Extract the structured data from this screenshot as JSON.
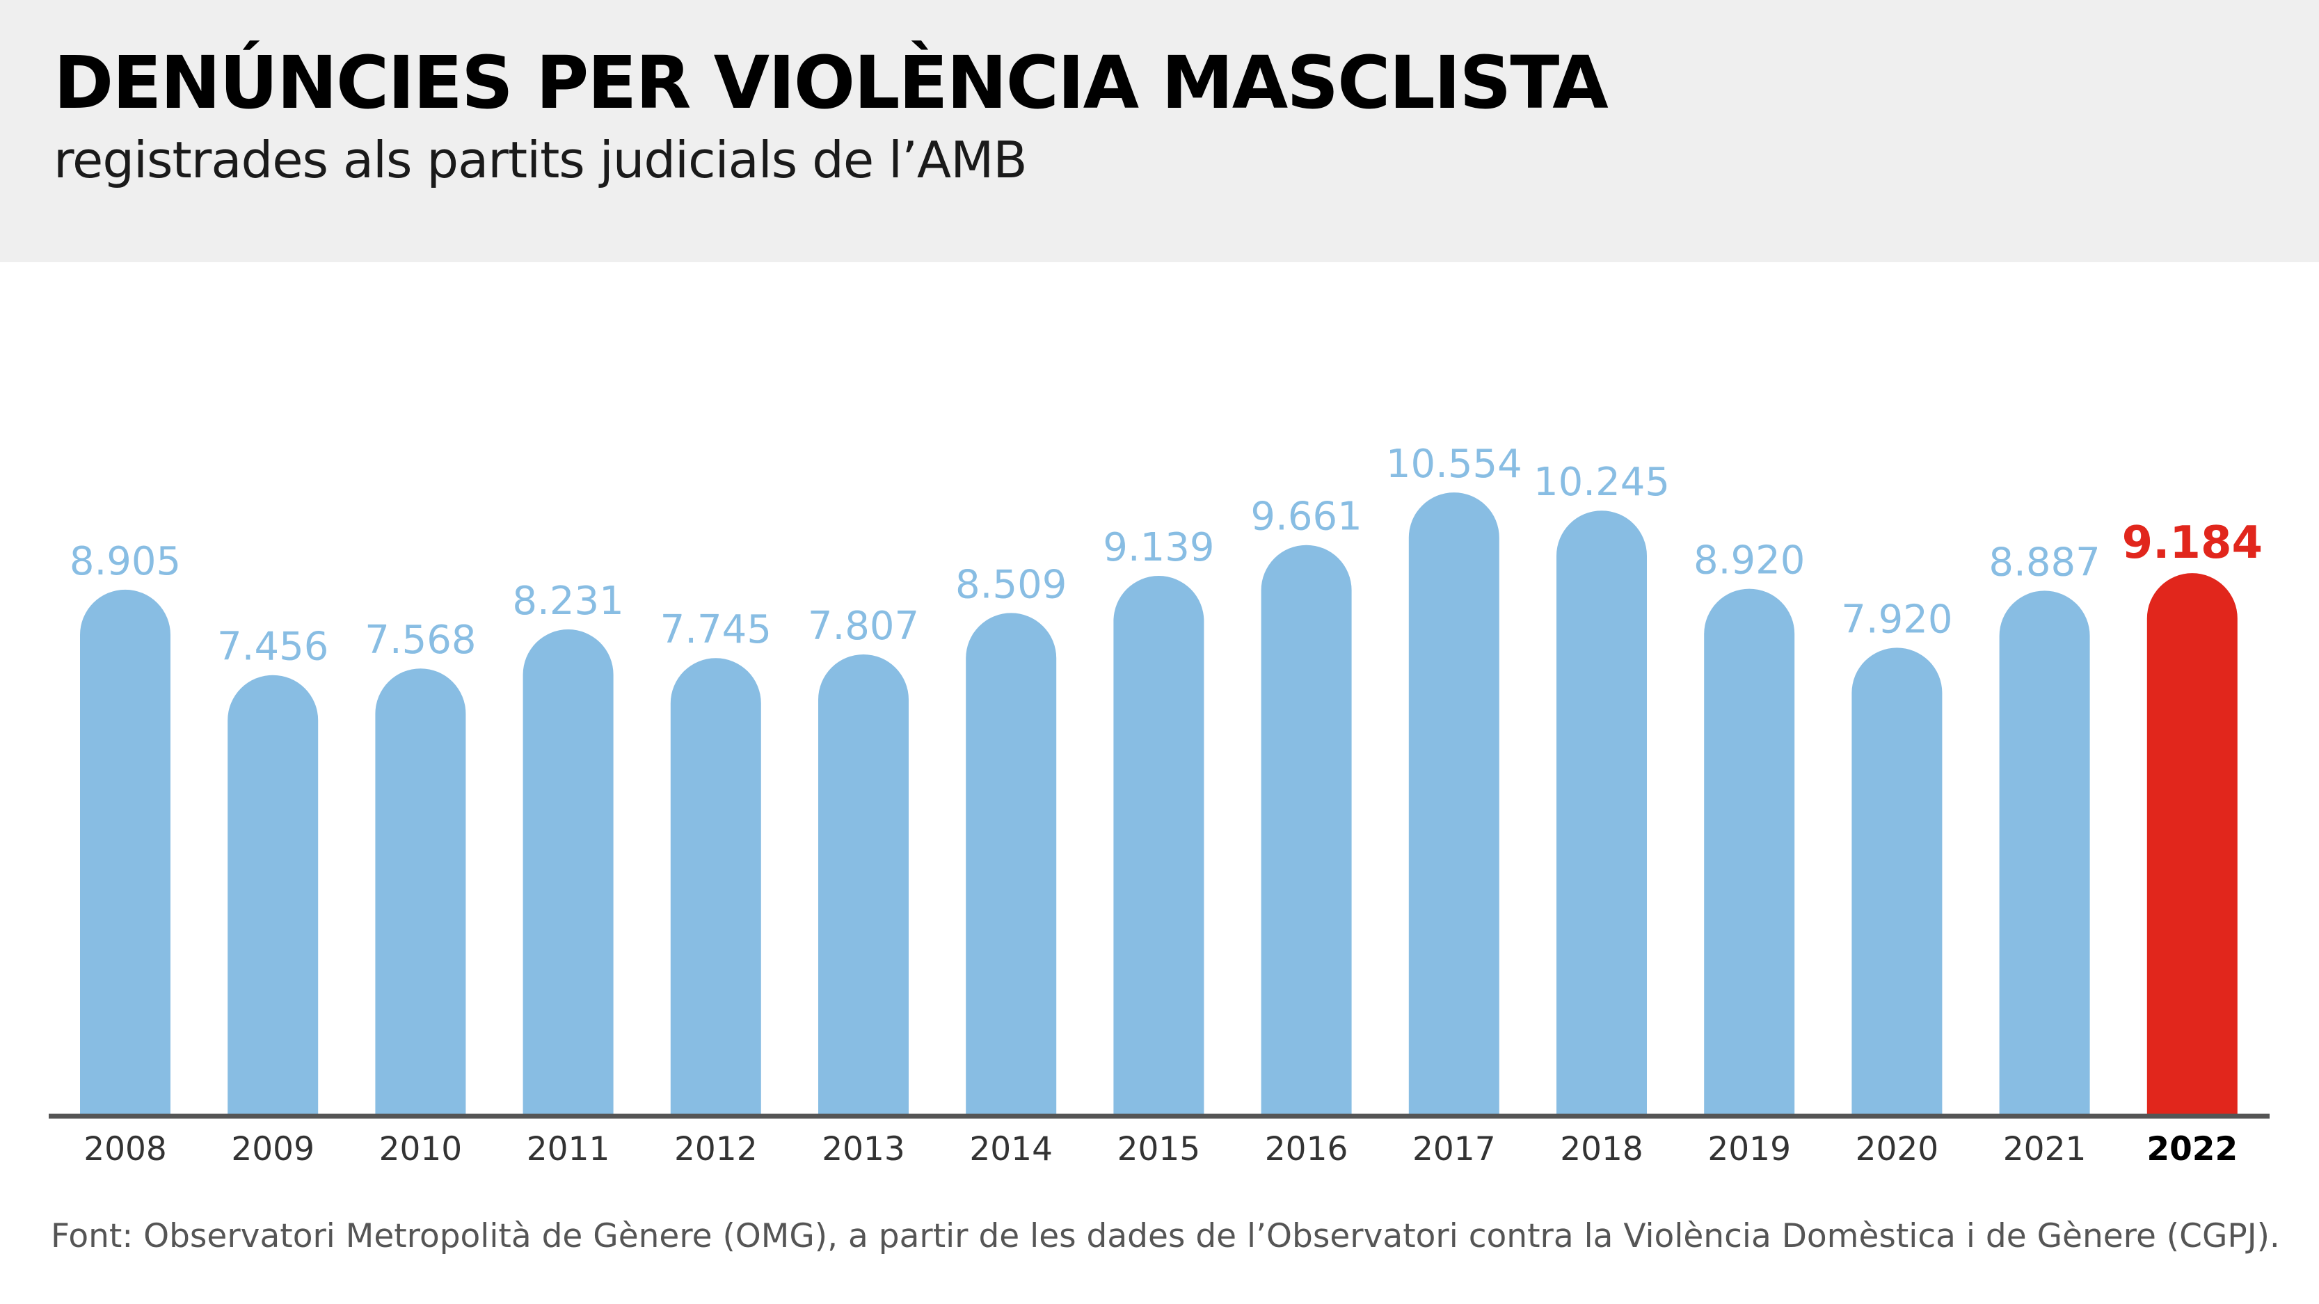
{
  "header": {
    "title": "DENÚNCIES PER VIOLÈNCIA MASCLISTA",
    "subtitle": "registrades als partits judicials de l’AMB"
  },
  "footer": {
    "source": "Font: Observatori Metropolità de Gènere (OMG), a partir de les dades de l’Observatori contra la Violència Domèstica i de Gènere (CGPJ)."
  },
  "colors": {
    "bar": "#88bde3",
    "highlight": "#e1261c",
    "value_label": "#88bde3",
    "axis": "#555555",
    "header_bg": "#efefef"
  },
  "chart_data": {
    "type": "bar",
    "categories": [
      "2008",
      "2009",
      "2010",
      "2011",
      "2012",
      "2013",
      "2014",
      "2015",
      "2016",
      "2017",
      "2018",
      "2019",
      "2020",
      "2021",
      "2022"
    ],
    "values": [
      8905,
      7456,
      7568,
      8231,
      7745,
      7807,
      8509,
      9139,
      9661,
      10554,
      10245,
      8920,
      7920,
      8887,
      9184
    ],
    "value_labels": [
      "8.905",
      "7.456",
      "7.568",
      "8.231",
      "7.745",
      "7.807",
      "8.509",
      "9.139",
      "9.661",
      "10.554",
      "10.245",
      "8.920",
      "7.920",
      "8.887",
      "9.184"
    ],
    "highlight_category": "2022",
    "ylim": [
      0,
      11000
    ],
    "grid": false,
    "legend": "none",
    "xlabel": "",
    "ylabel": ""
  }
}
